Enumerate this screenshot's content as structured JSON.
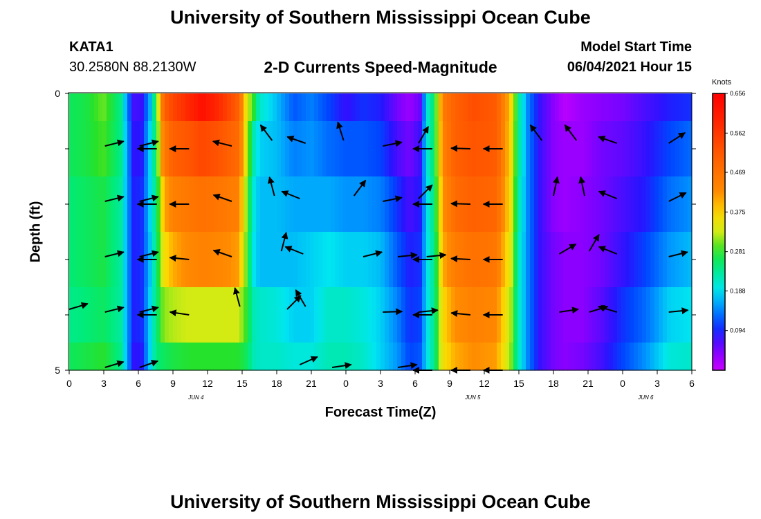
{
  "header": {
    "title": "University of Southern Mississippi Ocean Cube",
    "station_id": "KATA1",
    "station_coords": "30.2580N  88.2130W",
    "plot_title": "2-D Currents Speed-Magnitude",
    "model_label": "Model Start Time",
    "model_time": "06/04/2021 Hour 15"
  },
  "footer": {
    "title": "University of Southern Mississippi Ocean Cube"
  },
  "chart_data": {
    "type": "heatmap",
    "title": "2-D Currents Speed-Magnitude",
    "xlabel": "Forecast Time(Z)",
    "ylabel": "Depth (ft)",
    "ylim": [
      0,
      5
    ],
    "y_tick_labels": [
      "0",
      "5"
    ],
    "y_levels": [
      0,
      1,
      2,
      3,
      4,
      5
    ],
    "x_range_hours": [
      0,
      54
    ],
    "x_tick_labels": [
      "0",
      "3",
      "6",
      "9",
      "12",
      "15",
      "18",
      "21",
      "0",
      "3",
      "6",
      "9",
      "12",
      "15",
      "18",
      "21",
      "0",
      "3",
      "6"
    ],
    "date_labels": [
      {
        "text": "JUN 4",
        "hour": 11
      },
      {
        "text": "JUN 5",
        "hour": 35
      },
      {
        "text": "JUN 6",
        "hour": 50
      }
    ],
    "colorbar": {
      "unit": "Knots",
      "min": 0.0,
      "max": 0.656,
      "tick_values": [
        0.656,
        0.562,
        0.469,
        0.375,
        0.281,
        0.188,
        0.094
      ],
      "tick_labels": [
        "0.656",
        "0.562",
        "0.469",
        "0.375",
        "0.281",
        "0.188",
        "0.094"
      ]
    },
    "speed_profiles": [
      {
        "hour": 0,
        "values": [
          0.26,
          0.26,
          0.25,
          0.25,
          0.24,
          0.26
        ]
      },
      {
        "hour": 1.5,
        "values": [
          0.27,
          0.27,
          0.26,
          0.26,
          0.25,
          0.27
        ]
      },
      {
        "hour": 3,
        "values": [
          0.3,
          0.29,
          0.27,
          0.27,
          0.26,
          0.28
        ]
      },
      {
        "hour": 4.5,
        "values": [
          0.24,
          0.24,
          0.23,
          0.23,
          0.23,
          0.24
        ]
      },
      {
        "hour": 5,
        "values": [
          0.15,
          0.16,
          0.16,
          0.16,
          0.16,
          0.16
        ]
      },
      {
        "hour": 5.6,
        "values": [
          0.07,
          0.08,
          0.09,
          0.09,
          0.09,
          0.08
        ]
      },
      {
        "hour": 6.3,
        "values": [
          0.08,
          0.09,
          0.1,
          0.1,
          0.1,
          0.09
        ]
      },
      {
        "hour": 7,
        "values": [
          0.16,
          0.18,
          0.18,
          0.17,
          0.18,
          0.18
        ]
      },
      {
        "hour": 7.6,
        "values": [
          0.29,
          0.27,
          0.25,
          0.25,
          0.25,
          0.25
        ]
      },
      {
        "hour": 8.2,
        "values": [
          0.5,
          0.45,
          0.4,
          0.36,
          0.31,
          0.26
        ]
      },
      {
        "hour": 9,
        "values": [
          0.54,
          0.5,
          0.44,
          0.4,
          0.32,
          0.27
        ]
      },
      {
        "hour": 10.5,
        "values": [
          0.59,
          0.52,
          0.46,
          0.43,
          0.33,
          0.28
        ]
      },
      {
        "hour": 11.5,
        "values": [
          0.63,
          0.54,
          0.47,
          0.44,
          0.33,
          0.28
        ]
      },
      {
        "hour": 13,
        "values": [
          0.58,
          0.52,
          0.46,
          0.43,
          0.33,
          0.28
        ]
      },
      {
        "hour": 14.7,
        "values": [
          0.5,
          0.48,
          0.44,
          0.41,
          0.33,
          0.28
        ]
      },
      {
        "hour": 15.4,
        "values": [
          0.34,
          0.33,
          0.3,
          0.29,
          0.28,
          0.26
        ]
      },
      {
        "hour": 16,
        "values": [
          0.28,
          0.22,
          0.2,
          0.19,
          0.22,
          0.22
        ]
      },
      {
        "hour": 16.5,
        "values": [
          0.21,
          0.18,
          0.17,
          0.17,
          0.21,
          0.21
        ]
      },
      {
        "hour": 18,
        "values": [
          0.17,
          0.17,
          0.17,
          0.17,
          0.2,
          0.21
        ]
      },
      {
        "hour": 19.5,
        "values": [
          0.12,
          0.14,
          0.16,
          0.17,
          0.18,
          0.2
        ]
      },
      {
        "hour": 21,
        "values": [
          0.14,
          0.15,
          0.16,
          0.18,
          0.18,
          0.2
        ]
      },
      {
        "hour": 22.5,
        "values": [
          0.11,
          0.13,
          0.16,
          0.19,
          0.21,
          0.22
        ]
      },
      {
        "hour": 24,
        "values": [
          0.08,
          0.12,
          0.15,
          0.18,
          0.21,
          0.22
        ]
      },
      {
        "hour": 25.5,
        "values": [
          0.1,
          0.12,
          0.15,
          0.18,
          0.2,
          0.21
        ]
      },
      {
        "hour": 27,
        "values": [
          0.09,
          0.11,
          0.14,
          0.17,
          0.18,
          0.18
        ]
      },
      {
        "hour": 28.5,
        "values": [
          0.05,
          0.07,
          0.1,
          0.12,
          0.14,
          0.15
        ]
      },
      {
        "hour": 29.5,
        "values": [
          0.03,
          0.05,
          0.07,
          0.09,
          0.1,
          0.11
        ]
      },
      {
        "hour": 30.5,
        "values": [
          0.06,
          0.08,
          0.09,
          0.1,
          0.11,
          0.12
        ]
      },
      {
        "hour": 31,
        "values": [
          0.2,
          0.2,
          0.19,
          0.19,
          0.19,
          0.19
        ]
      },
      {
        "hour": 31.7,
        "values": [
          0.26,
          0.26,
          0.25,
          0.24,
          0.24,
          0.24
        ]
      },
      {
        "hour": 32.4,
        "values": [
          0.45,
          0.44,
          0.42,
          0.4,
          0.37,
          0.36
        ]
      },
      {
        "hour": 33.5,
        "values": [
          0.5,
          0.5,
          0.48,
          0.45,
          0.42,
          0.4
        ]
      },
      {
        "hour": 35,
        "values": [
          0.53,
          0.52,
          0.5,
          0.47,
          0.44,
          0.42
        ]
      },
      {
        "hour": 37,
        "values": [
          0.51,
          0.51,
          0.49,
          0.46,
          0.43,
          0.41
        ]
      },
      {
        "hour": 38.3,
        "values": [
          0.38,
          0.37,
          0.36,
          0.34,
          0.32,
          0.31
        ]
      },
      {
        "hour": 39,
        "values": [
          0.23,
          0.23,
          0.22,
          0.21,
          0.21,
          0.21
        ]
      },
      {
        "hour": 39.8,
        "values": [
          0.14,
          0.14,
          0.14,
          0.14,
          0.14,
          0.14
        ]
      },
      {
        "hour": 40.8,
        "values": [
          0.08,
          0.08,
          0.08,
          0.08,
          0.08,
          0.08
        ]
      },
      {
        "hour": 42,
        "values": [
          0.04,
          0.04,
          0.04,
          0.05,
          0.05,
          0.05
        ]
      },
      {
        "hour": 43,
        "values": [
          0.01,
          0.03,
          0.03,
          0.04,
          0.04,
          0.04
        ]
      },
      {
        "hour": 44.5,
        "values": [
          0.03,
          0.03,
          0.04,
          0.04,
          0.04,
          0.05
        ]
      },
      {
        "hour": 46,
        "values": [
          0.04,
          0.05,
          0.05,
          0.05,
          0.06,
          0.07
        ]
      },
      {
        "hour": 48,
        "values": [
          0.05,
          0.06,
          0.07,
          0.08,
          0.1,
          0.11
        ]
      },
      {
        "hour": 50,
        "values": [
          0.07,
          0.08,
          0.09,
          0.11,
          0.13,
          0.15
        ]
      },
      {
        "hour": 52,
        "values": [
          0.09,
          0.11,
          0.13,
          0.15,
          0.18,
          0.2
        ]
      },
      {
        "hour": 54,
        "values": [
          0.1,
          0.13,
          0.15,
          0.17,
          0.19,
          0.21
        ]
      }
    ],
    "vectors": [
      {
        "hour": 3.1,
        "depth": 0.95,
        "u": 1,
        "v": 0.25
      },
      {
        "hour": 6.1,
        "depth": 0.95,
        "u": 1,
        "v": 0.25
      },
      {
        "hour": 7.6,
        "depth": 1.0,
        "u": -1,
        "v": 0.0
      },
      {
        "hour": 10.4,
        "depth": 1.0,
        "u": -1,
        "v": 0.0
      },
      {
        "hour": 14.1,
        "depth": 0.95,
        "u": -1,
        "v": 0.25
      },
      {
        "hour": 17.6,
        "depth": 0.85,
        "u": -0.6,
        "v": 0.8
      },
      {
        "hour": 20.5,
        "depth": 0.9,
        "u": -1,
        "v": 0.35
      },
      {
        "hour": 23.8,
        "depth": 0.85,
        "u": -0.3,
        "v": 0.95
      },
      {
        "hour": 27.2,
        "depth": 0.95,
        "u": 1,
        "v": 0.2
      },
      {
        "hour": 30.3,
        "depth": 0.9,
        "u": 0.5,
        "v": 0.85
      },
      {
        "hour": 31.5,
        "depth": 1.0,
        "u": -1,
        "v": 0.0
      },
      {
        "hour": 34.8,
        "depth": 1.0,
        "u": -1,
        "v": 0.03
      },
      {
        "hour": 37.6,
        "depth": 1.0,
        "u": -1,
        "v": 0.0
      },
      {
        "hour": 41.0,
        "depth": 0.85,
        "u": -0.6,
        "v": 0.8
      },
      {
        "hour": 44.0,
        "depth": 0.85,
        "u": -0.6,
        "v": 0.8
      },
      {
        "hour": 47.5,
        "depth": 0.9,
        "u": -1,
        "v": 0.35
      },
      {
        "hour": 52.0,
        "depth": 0.9,
        "u": 0.85,
        "v": 0.55
      },
      {
        "hour": 3.1,
        "depth": 1.95,
        "u": 1,
        "v": 0.25
      },
      {
        "hour": 6.1,
        "depth": 1.95,
        "u": 1,
        "v": 0.25
      },
      {
        "hour": 7.6,
        "depth": 2.0,
        "u": -1,
        "v": 0.0
      },
      {
        "hour": 10.4,
        "depth": 2.0,
        "u": -1,
        "v": 0.0
      },
      {
        "hour": 14.1,
        "depth": 1.95,
        "u": -1,
        "v": 0.35
      },
      {
        "hour": 17.8,
        "depth": 1.85,
        "u": -0.25,
        "v": 0.95
      },
      {
        "hour": 20.0,
        "depth": 1.9,
        "u": -1,
        "v": 0.4
      },
      {
        "hour": 24.7,
        "depth": 1.85,
        "u": 0.6,
        "v": 0.8
      },
      {
        "hour": 27.2,
        "depth": 1.95,
        "u": 1,
        "v": 0.2
      },
      {
        "hour": 30.3,
        "depth": 1.9,
        "u": 0.6,
        "v": 0.6
      },
      {
        "hour": 31.5,
        "depth": 2.0,
        "u": -1,
        "v": 0.0
      },
      {
        "hour": 34.8,
        "depth": 2.0,
        "u": -1,
        "v": 0.03
      },
      {
        "hour": 37.6,
        "depth": 2.0,
        "u": -1,
        "v": 0.0
      },
      {
        "hour": 42.0,
        "depth": 1.85,
        "u": 0.2,
        "v": 0.95
      },
      {
        "hour": 44.7,
        "depth": 1.85,
        "u": -0.2,
        "v": 0.95
      },
      {
        "hour": 47.5,
        "depth": 1.9,
        "u": -1,
        "v": 0.4
      },
      {
        "hour": 52.0,
        "depth": 1.95,
        "u": 0.9,
        "v": 0.45
      },
      {
        "hour": 3.1,
        "depth": 2.95,
        "u": 1,
        "v": 0.25
      },
      {
        "hour": 6.1,
        "depth": 2.95,
        "u": 1,
        "v": 0.25
      },
      {
        "hour": 7.6,
        "depth": 3.0,
        "u": -1,
        "v": 0.0
      },
      {
        "hour": 10.4,
        "depth": 3.0,
        "u": -1,
        "v": 0.1
      },
      {
        "hour": 14.1,
        "depth": 2.95,
        "u": -1,
        "v": 0.35
      },
      {
        "hour": 18.4,
        "depth": 2.85,
        "u": 0.25,
        "v": 0.95
      },
      {
        "hour": 20.3,
        "depth": 2.9,
        "u": -1,
        "v": 0.4
      },
      {
        "hour": 25.5,
        "depth": 2.95,
        "u": 1,
        "v": 0.25
      },
      {
        "hour": 28.5,
        "depth": 2.95,
        "u": 1,
        "v": 0.1
      },
      {
        "hour": 31.0,
        "depth": 2.95,
        "u": 1,
        "v": 0.1
      },
      {
        "hour": 31.5,
        "depth": 3.0,
        "u": -1,
        "v": 0.0
      },
      {
        "hour": 34.8,
        "depth": 3.0,
        "u": -1,
        "v": 0.05
      },
      {
        "hour": 37.6,
        "depth": 3.0,
        "u": -1,
        "v": 0.0
      },
      {
        "hour": 42.5,
        "depth": 2.9,
        "u": 0.85,
        "v": 0.5
      },
      {
        "hour": 45.1,
        "depth": 2.85,
        "u": 0.5,
        "v": 0.85
      },
      {
        "hour": 47.5,
        "depth": 2.9,
        "u": -1,
        "v": 0.4
      },
      {
        "hour": 52.0,
        "depth": 2.95,
        "u": 1,
        "v": 0.25
      },
      {
        "hour": 0.0,
        "depth": 3.9,
        "u": 1,
        "v": 0.3
      },
      {
        "hour": 3.1,
        "depth": 3.95,
        "u": 1,
        "v": 0.25
      },
      {
        "hour": 6.1,
        "depth": 3.95,
        "u": 1,
        "v": 0.25
      },
      {
        "hour": 7.6,
        "depth": 4.0,
        "u": -1,
        "v": 0.0
      },
      {
        "hour": 10.4,
        "depth": 4.0,
        "u": -1,
        "v": 0.15
      },
      {
        "hour": 14.8,
        "depth": 3.85,
        "u": -0.25,
        "v": 0.95
      },
      {
        "hour": 18.9,
        "depth": 3.9,
        "u": 0.7,
        "v": 0.7
      },
      {
        "hour": 20.5,
        "depth": 3.85,
        "u": -0.5,
        "v": 0.85
      },
      {
        "hour": 27.2,
        "depth": 3.95,
        "u": 1,
        "v": 0.03
      },
      {
        "hour": 30.3,
        "depth": 3.95,
        "u": 1,
        "v": 0.1
      },
      {
        "hour": 31.5,
        "depth": 4.0,
        "u": -1,
        "v": 0.0
      },
      {
        "hour": 34.8,
        "depth": 4.0,
        "u": -1,
        "v": 0.1
      },
      {
        "hour": 37.6,
        "depth": 4.0,
        "u": -1,
        "v": 0.0
      },
      {
        "hour": 42.5,
        "depth": 3.95,
        "u": 1,
        "v": 0.15
      },
      {
        "hour": 45.1,
        "depth": 3.95,
        "u": 1,
        "v": 0.3
      },
      {
        "hour": 47.5,
        "depth": 3.95,
        "u": -1,
        "v": 0.3
      },
      {
        "hour": 52.0,
        "depth": 3.95,
        "u": 1,
        "v": 0.1
      },
      {
        "hour": 3.1,
        "depth": 4.95,
        "u": 1,
        "v": 0.3
      },
      {
        "hour": 6.1,
        "depth": 4.95,
        "u": 1,
        "v": 0.35
      },
      {
        "hour": 20.0,
        "depth": 4.9,
        "u": 0.9,
        "v": 0.4
      },
      {
        "hour": 22.8,
        "depth": 4.95,
        "u": 1,
        "v": 0.15
      },
      {
        "hour": 28.5,
        "depth": 4.95,
        "u": 1,
        "v": 0.15
      },
      {
        "hour": 31.5,
        "depth": 5.0,
        "u": -1,
        "v": 0.0
      },
      {
        "hour": 34.8,
        "depth": 5.0,
        "u": -1,
        "v": 0.0
      },
      {
        "hour": 37.6,
        "depth": 5.0,
        "u": -1,
        "v": 0.0
      }
    ]
  }
}
